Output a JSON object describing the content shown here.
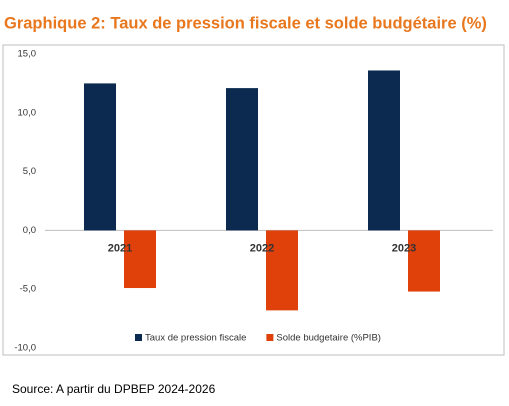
{
  "chart_data": {
    "type": "bar",
    "title": "Graphique 2: Taux de pression fiscale et solde budgétaire (%)",
    "categories": [
      "2021",
      "2022",
      "2023"
    ],
    "series": [
      {
        "name": "Taux de pression fiscale",
        "color": "#0c2a4f",
        "values": [
          12.5,
          12.1,
          13.6
        ]
      },
      {
        "name": "Solde budgetaire (%PIB)",
        "color": "#e0400a",
        "values": [
          -4.9,
          -6.8,
          -5.2
        ]
      }
    ],
    "ylim": [
      -10,
      15
    ],
    "yticks": [
      {
        "value": -10,
        "label": "-10,0"
      },
      {
        "value": -5,
        "label": "-5,0"
      },
      {
        "value": 0,
        "label": "0,0"
      },
      {
        "value": 5,
        "label": "5,0"
      },
      {
        "value": 10,
        "label": "10,0"
      },
      {
        "value": 15,
        "label": "15,0"
      }
    ],
    "grid": false,
    "legend": "bottom",
    "source": "Source: A partir du DPBEP 2024-2026"
  }
}
